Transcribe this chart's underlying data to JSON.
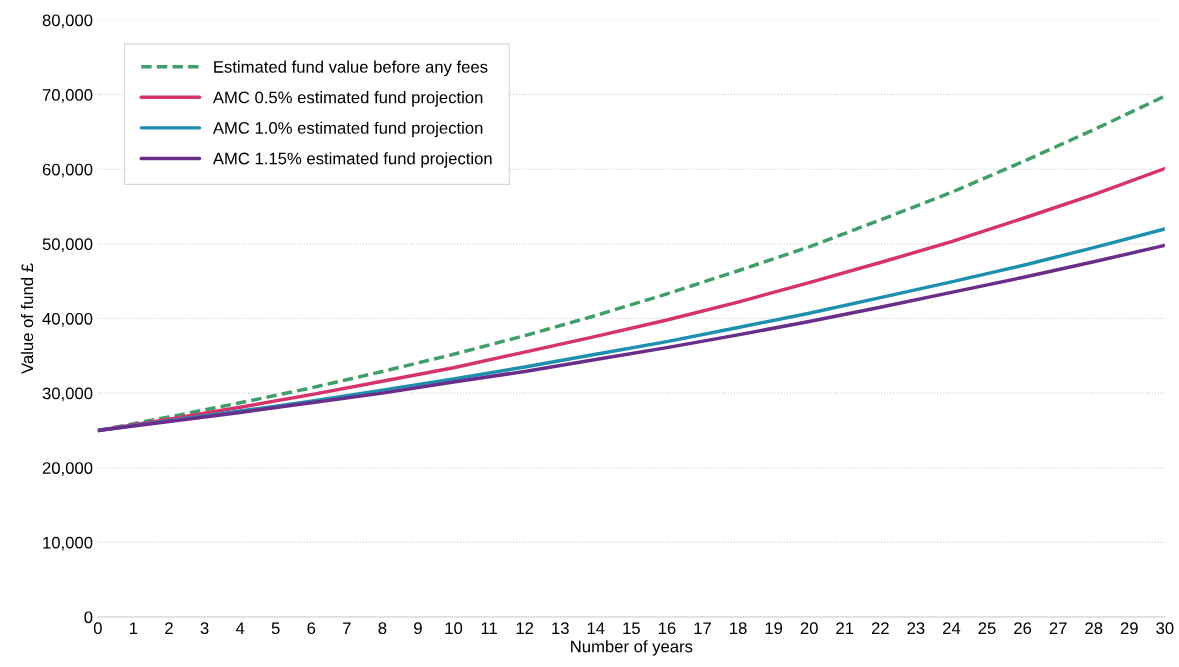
{
  "chart_data": {
    "type": "line",
    "xlabel": "Number of years",
    "ylabel": "Value of fund £",
    "x": [
      0,
      2,
      4,
      6,
      8,
      10,
      12,
      14,
      16,
      18,
      20,
      22,
      24,
      26,
      28,
      30
    ],
    "series": [
      {
        "name": "Estimated fund value before any fees",
        "color": "#3f9e6a",
        "line_style": "dashed",
        "values": [
          25000,
          26800,
          28700,
          30700,
          32900,
          35200,
          37700,
          40400,
          43300,
          46400,
          49600,
          53200,
          56900,
          61000,
          65300,
          69800
        ]
      },
      {
        "name": "AMC 0.5% estimated fund projection",
        "color": "#d6336c",
        "line_style": "solid",
        "values": [
          25000,
          26500,
          28100,
          29800,
          31600,
          33400,
          35500,
          37600,
          39800,
          42200,
          44800,
          47500,
          50300,
          53400,
          56600,
          60100
        ]
      },
      {
        "name": "AMC 1.0% estimated fund projection",
        "color": "#1f8fb0",
        "line_style": "solid",
        "values": [
          25000,
          26300,
          27600,
          28900,
          30400,
          31900,
          33500,
          35200,
          36900,
          38800,
          40700,
          42800,
          44900,
          47100,
          49500,
          52000
        ]
      },
      {
        "name": "AMC 1.15% estimated fund projection",
        "color": "#6a2d8a",
        "line_style": "solid",
        "values": [
          25000,
          26200,
          27400,
          28700,
          30000,
          31500,
          32900,
          34500,
          36100,
          37800,
          39600,
          41500,
          43500,
          45500,
          47600,
          49800
        ]
      }
    ],
    "xlim": [
      0,
      30
    ],
    "xticks": [
      0,
      1,
      2,
      3,
      4,
      5,
      6,
      7,
      8,
      9,
      10,
      11,
      12,
      13,
      14,
      15,
      16,
      17,
      18,
      19,
      20,
      21,
      22,
      23,
      24,
      25,
      26,
      27,
      28,
      29,
      30
    ],
    "ylim": [
      0,
      80000
    ],
    "yticks": [
      {
        "value": 0,
        "label": "0"
      },
      {
        "value": 10000,
        "label": "10,000"
      },
      {
        "value": 20000,
        "label": "20,000"
      },
      {
        "value": 30000,
        "label": "30,000"
      },
      {
        "value": 40000,
        "label": "40,000"
      },
      {
        "value": 50000,
        "label": "50,000"
      },
      {
        "value": 60000,
        "label": "60,000"
      },
      {
        "value": 70000,
        "label": "70,000"
      },
      {
        "value": 80000,
        "label": "80,000"
      }
    ],
    "grid": "y",
    "legend": "top left",
    "marker": "none"
  }
}
